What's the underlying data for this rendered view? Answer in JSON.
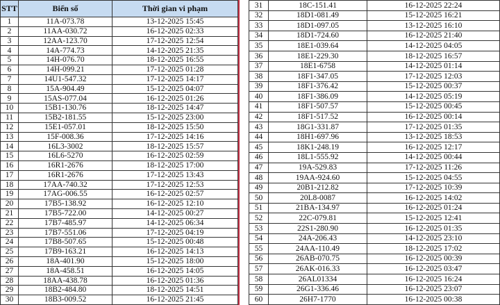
{
  "header": {
    "stt": "STT",
    "plate": "Biển số",
    "time": "Thời gian vi phạm"
  },
  "colors": {
    "header_bg": "#c6dbf1",
    "divider": "#c8344a"
  },
  "left_rows": [
    [
      "1",
      "11A-073.78",
      "13-12-2025 15:45"
    ],
    [
      "2",
      "11AA-030.72",
      "16-12-2025 02:33"
    ],
    [
      "3",
      "12AA-123.70",
      "17-12-2025 12:54"
    ],
    [
      "4",
      "14A-774.73",
      "14-12-2025 21:35"
    ],
    [
      "5",
      "14H-076.70",
      "18-12-2025 16:55"
    ],
    [
      "6",
      "14H-099.21",
      "17-12-2025 01:28"
    ],
    [
      "7",
      "14U1-547.32",
      "17-12-2025 14:17"
    ],
    [
      "8",
      "15A-904.49",
      "15-12-2025 04:07"
    ],
    [
      "9",
      "15AS-077.04",
      "16-12-2025 01:26"
    ],
    [
      "10",
      "15B1-130.76",
      "18-12-2025 14:47"
    ],
    [
      "11",
      "15B2-181.55",
      "15-12-2025 23:00"
    ],
    [
      "12",
      "15E1-057.01",
      "18-12-2025 15:50"
    ],
    [
      "13",
      "15F-008.36",
      "17-12-2025 14:16"
    ],
    [
      "14",
      "16L3-3002",
      "18-12-2025 15:57"
    ],
    [
      "15",
      "16L6-5270",
      "16-12-2025 02:59"
    ],
    [
      "16",
      "16R1-2676",
      "18-12-2025 17:00"
    ],
    [
      "17",
      "16R1-2676",
      "17-12-2025 13:43"
    ],
    [
      "18",
      "17AA-740.32",
      "17-12-2025 12:53"
    ],
    [
      "19",
      "17AG-006.55",
      "16-12-2025 02:57"
    ],
    [
      "20",
      "17B5-138.92",
      "16-12-2025 12:10"
    ],
    [
      "21",
      "17B5-722.00",
      "14-12-2025 00:27"
    ],
    [
      "22",
      "17B7-485.97",
      "14-12-2025 06:34"
    ],
    [
      "23",
      "17B7-551.06",
      "17-12-2025 04:19"
    ],
    [
      "24",
      "17B8-507.65",
      "15-12-2025 00:48"
    ],
    [
      "25",
      "17B9-163.21",
      "16-12-2025 14:13"
    ],
    [
      "26",
      "18A-401.90",
      "15-12-2025 18:00"
    ],
    [
      "27",
      "18A-458.51",
      "16-12-2025 14:05"
    ],
    [
      "28",
      "18AA-438.78",
      "16-12-2025 01:36"
    ],
    [
      "29",
      "18B2-484.80",
      "18-12-2025 14:51"
    ],
    [
      "30",
      "18B3-009.52",
      "16-12-2025 21:45"
    ]
  ],
  "right_rows": [
    [
      "31",
      "18C-151.41",
      "16-12-2025 22:24"
    ],
    [
      "32",
      "18D1-081.49",
      "15-12-2025 16:21"
    ],
    [
      "33",
      "18D1-097.05",
      "13-12-2025 16:10"
    ],
    [
      "34",
      "18D1-724.60",
      "16-12-2025 21:40"
    ],
    [
      "35",
      "18E1-039.64",
      "14-12-2025 04:05"
    ],
    [
      "36",
      "18E1-229.30",
      "18-12-2025 16:57"
    ],
    [
      "37",
      "18E1-6758",
      "14-12-2025 01:14"
    ],
    [
      "38",
      "18F1-347.05",
      "17-12-2025 12:03"
    ],
    [
      "39",
      "18F1-376.42",
      "15-12-2025 00:37"
    ],
    [
      "40",
      "18F1-386.09",
      "14-12-2025 05:19"
    ],
    [
      "41",
      "18F1-507.57",
      "15-12-2025 00:45"
    ],
    [
      "42",
      "18F1-517.52",
      "16-12-2025 00:14"
    ],
    [
      "43",
      "18G1-331.87",
      "17-12-2025 01:35"
    ],
    [
      "44",
      "18H1-697.96",
      "13-12-2025 18:53"
    ],
    [
      "45",
      "18K1-248.19",
      "16-12-2025 12:17"
    ],
    [
      "46",
      "18L1-555.92",
      "14-12-2025 00:44"
    ],
    [
      "47",
      "19A-529.83",
      "17-12-2025 11:26"
    ],
    [
      "48",
      "19AA-924.60",
      "15-12-2025 04:55"
    ],
    [
      "49",
      "20B1-212.82",
      "17-12-2025 10:39"
    ],
    [
      "50",
      "20L8-0087",
      "16-12-2025 14:02"
    ],
    [
      "51",
      "21BA-134.97",
      "16-12-2025 01:24"
    ],
    [
      "52",
      "22C-079.81",
      "15-12-2025 12:41"
    ],
    [
      "53",
      "22S1-280.90",
      "16-12-2025 01:35"
    ],
    [
      "54",
      "24A-206.43",
      "14-12-2025 23:10"
    ],
    [
      "55",
      "24AA-110.49",
      "18-12-2025 17:02"
    ],
    [
      "56",
      "26AB-070.75",
      "16-12-2025 00:39"
    ],
    [
      "57",
      "26AK-016.33",
      "16-12-2025 03:47"
    ],
    [
      "58",
      "26AL01334",
      "16-12-2025 16:24"
    ],
    [
      "59",
      "26G1-336.46",
      "16-12-2025 23:07"
    ],
    [
      "60",
      "26H7-1770",
      "16-12-2025 00:38"
    ]
  ]
}
